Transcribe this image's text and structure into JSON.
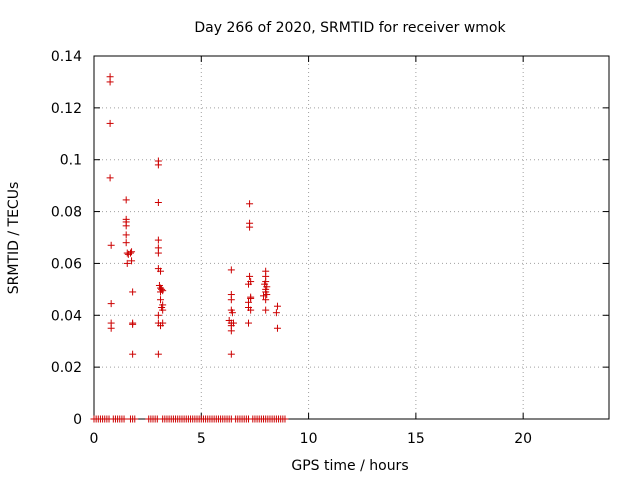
{
  "chart_data": {
    "type": "scatter",
    "title": "Day 266 of 2020, SRMTID for receiver wmok",
    "xlabel": "GPS time / hours",
    "ylabel": "SRMTID / TECUs",
    "xlim": [
      0,
      24
    ],
    "ylim": [
      0,
      0.14
    ],
    "xticks": [
      0,
      5,
      10,
      15,
      20
    ],
    "yticks": [
      0,
      0.02,
      0.04,
      0.06,
      0.08,
      0.1,
      0.12,
      0.14
    ],
    "xtick_labels": [
      "0",
      "5",
      "10",
      "15",
      "20"
    ],
    "ytick_labels": [
      "0",
      "0.02",
      "0.04",
      "0.06",
      "0.08",
      "0.1",
      "0.12",
      "0.14"
    ],
    "grid": true,
    "marker": "+",
    "series": [
      {
        "color": "#cc0000",
        "points": [
          [
            0.75,
            0.132
          ],
          [
            0.75,
            0.13
          ],
          [
            0.75,
            0.114
          ],
          [
            0.75,
            0.093
          ],
          [
            0.8,
            0.067
          ],
          [
            0.8,
            0.0445
          ],
          [
            0.8,
            0.037
          ],
          [
            0.8,
            0.035
          ],
          [
            1.5,
            0.0845
          ],
          [
            1.5,
            0.077
          ],
          [
            1.5,
            0.076
          ],
          [
            1.5,
            0.0745
          ],
          [
            1.5,
            0.071
          ],
          [
            1.5,
            0.068
          ],
          [
            1.55,
            0.064
          ],
          [
            1.55,
            0.06
          ],
          [
            1.6,
            0.0635
          ],
          [
            1.7,
            0.064
          ],
          [
            1.75,
            0.0645
          ],
          [
            1.75,
            0.061
          ],
          [
            1.8,
            0.049
          ],
          [
            1.8,
            0.037
          ],
          [
            1.8,
            0.0365
          ],
          [
            1.8,
            0.025
          ],
          [
            3.0,
            0.0995
          ],
          [
            3.0,
            0.098
          ],
          [
            3.0,
            0.0835
          ],
          [
            3.0,
            0.069
          ],
          [
            3.0,
            0.066
          ],
          [
            3.0,
            0.064
          ],
          [
            3.0,
            0.058
          ],
          [
            3.1,
            0.057
          ],
          [
            3.05,
            0.0515
          ],
          [
            3.1,
            0.0505
          ],
          [
            3.15,
            0.05
          ],
          [
            3.1,
            0.049
          ],
          [
            3.2,
            0.0495
          ],
          [
            3.0,
            0.04
          ],
          [
            3.1,
            0.046
          ],
          [
            3.2,
            0.044
          ],
          [
            3.15,
            0.043
          ],
          [
            3.2,
            0.042
          ],
          [
            3.0,
            0.037
          ],
          [
            3.1,
            0.036
          ],
          [
            3.2,
            0.037
          ],
          [
            3.0,
            0.025
          ],
          [
            6.4,
            0.0575
          ],
          [
            6.4,
            0.048
          ],
          [
            6.4,
            0.046
          ],
          [
            6.4,
            0.042
          ],
          [
            6.45,
            0.041
          ],
          [
            6.3,
            0.038
          ],
          [
            6.4,
            0.037
          ],
          [
            6.5,
            0.037
          ],
          [
            6.4,
            0.036
          ],
          [
            6.4,
            0.034
          ],
          [
            6.4,
            0.025
          ],
          [
            7.25,
            0.083
          ],
          [
            7.25,
            0.0755
          ],
          [
            7.25,
            0.074
          ],
          [
            7.25,
            0.055
          ],
          [
            7.3,
            0.053
          ],
          [
            7.2,
            0.052
          ],
          [
            7.3,
            0.047
          ],
          [
            7.3,
            0.0465
          ],
          [
            7.2,
            0.045
          ],
          [
            7.2,
            0.043
          ],
          [
            7.3,
            0.042
          ],
          [
            7.2,
            0.037
          ],
          [
            8.0,
            0.057
          ],
          [
            8.0,
            0.055
          ],
          [
            8.0,
            0.053
          ],
          [
            7.95,
            0.052
          ],
          [
            8.05,
            0.051
          ],
          [
            8.0,
            0.05
          ],
          [
            8.0,
            0.049
          ],
          [
            8.05,
            0.048
          ],
          [
            7.9,
            0.0475
          ],
          [
            8.0,
            0.046
          ],
          [
            8.0,
            0.042
          ],
          [
            8.55,
            0.0435
          ],
          [
            8.5,
            0.041
          ],
          [
            8.55,
            0.035
          ]
        ],
        "zero_runs": [
          [
            0.0,
            0.7
          ],
          [
            0.9,
            1.4
          ],
          [
            1.7,
            1.95
          ],
          [
            2.55,
            2.95
          ],
          [
            3.2,
            6.4
          ],
          [
            6.6,
            7.2
          ],
          [
            7.4,
            8.9
          ]
        ]
      }
    ]
  }
}
